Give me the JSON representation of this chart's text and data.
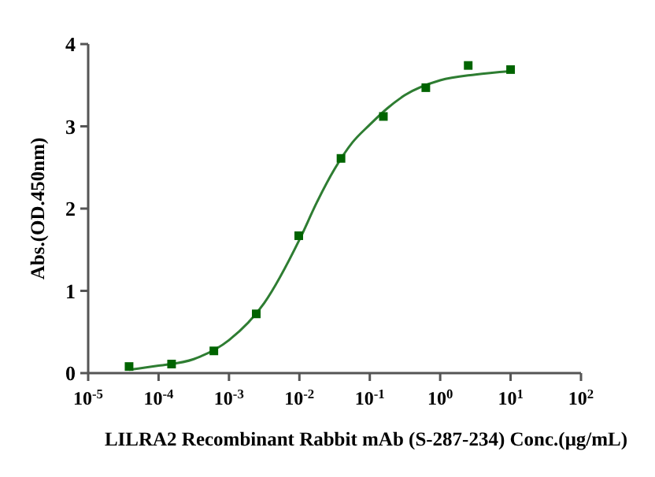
{
  "chart_data": {
    "type": "scatter",
    "xlabel": "LILRA2 Recombinant Rabbit mAb (S-287-234)  Conc.(μg/mL)",
    "ylabel": "Abs.(OD.450nm)",
    "log": "x",
    "xlim": [
      1e-05,
      100
    ],
    "xticks": [
      {
        "value": 1e-05,
        "label": "10$^{-5}$"
      },
      {
        "value": 0.0001,
        "label": "10$^{-4}$"
      },
      {
        "value": 0.001,
        "label": "10$^{-3}$"
      },
      {
        "value": 0.01,
        "label": "10$^{-2}$"
      },
      {
        "value": 0.1,
        "label": "10$^{-1}$"
      },
      {
        "value": 1,
        "label": "10$^{0}$"
      },
      {
        "value": 10,
        "label": "10$^{1}$"
      },
      {
        "value": 100,
        "label": "10$^{2}$"
      }
    ],
    "ylim": [
      0,
      4
    ],
    "yticks": [
      0,
      1,
      2,
      3,
      4
    ],
    "grid": false,
    "series": [
      {
        "color": "#006400",
        "marker": "square",
        "x": [
          3.81e-05,
          0.000153,
          0.00061,
          0.00244,
          0.0098,
          0.039,
          0.156,
          0.625,
          2.5,
          10
        ],
        "values": [
          0.08,
          0.11,
          0.27,
          0.72,
          1.67,
          2.61,
          3.12,
          3.47,
          3.74,
          3.69
        ]
      },
      {
        "type": "line",
        "color": "#2e7d32",
        "marker": "none",
        "line_style": "solid",
        "x": [
          3.8e-05,
          0.0001,
          0.000316,
          0.001,
          0.00316,
          0.01,
          0.0178,
          0.0316,
          0.0562,
          0.1,
          0.178,
          0.316,
          1,
          3.16,
          10
        ],
        "values": [
          0.04,
          0.09,
          0.17,
          0.4,
          0.85,
          1.62,
          2.08,
          2.48,
          2.8,
          3.02,
          3.22,
          3.38,
          3.56,
          3.63,
          3.67
        ]
      }
    ]
  }
}
